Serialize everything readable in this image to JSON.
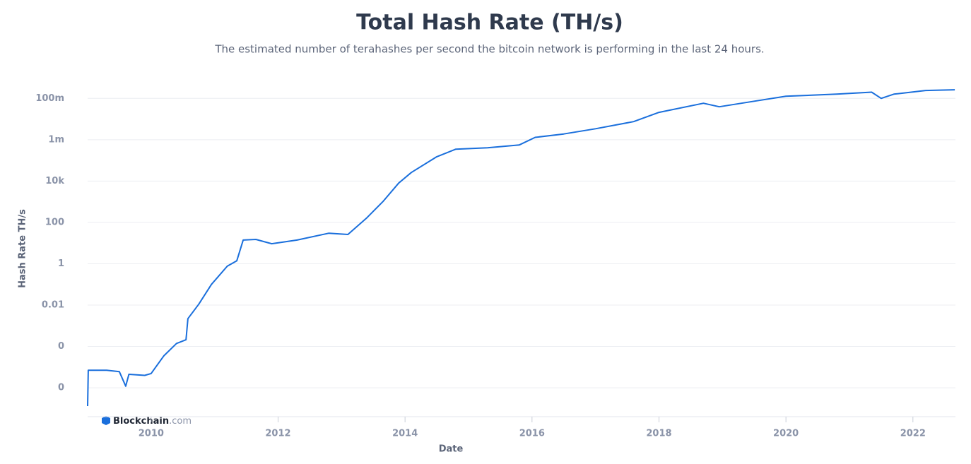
{
  "chart_data": {
    "type": "line",
    "title": "Total Hash Rate (TH/s)",
    "subtitle": "The estimated number of terahashes per second the bitcoin network is performing in the last 24 hours.",
    "xlabel": "Date",
    "ylabel": "Hash Rate TH/s",
    "brand": [
      "Blockchain",
      ".com"
    ],
    "log_y": true,
    "grid": true,
    "xlim": [
      2009,
      2022.67
    ],
    "ylim": [
      4e-08,
      1000000000
    ],
    "xticks": [
      2010,
      2012,
      2014,
      2016,
      2018,
      2020,
      2022
    ],
    "yticks": [
      {
        "value": 100000000,
        "label": "100m"
      },
      {
        "value": 1000000,
        "label": "1m"
      },
      {
        "value": 10000,
        "label": "10k"
      },
      100,
      1,
      0.01,
      {
        "value": 0.0001,
        "label": "0"
      },
      {
        "value": 1e-06,
        "label": "0"
      }
    ],
    "x": [
      2009.0,
      2009.01,
      2009.3,
      2009.5,
      2009.6,
      2009.65,
      2009.9,
      2010.0,
      2010.2,
      2010.4,
      2010.55,
      2010.58,
      2010.75,
      2010.95,
      2011.2,
      2011.35,
      2011.45,
      2011.65,
      2011.9,
      2012.3,
      2012.8,
      2013.1,
      2013.4,
      2013.65,
      2013.9,
      2014.1,
      2014.5,
      2014.8,
      2015.3,
      2015.8,
      2016.05,
      2016.5,
      2017.0,
      2017.6,
      2018.0,
      2018.7,
      2018.95,
      2019.5,
      2020.0,
      2020.8,
      2021.35,
      2021.5,
      2021.7,
      2022.2,
      2022.66
    ],
    "series": [
      {
        "name": "Hash Rate",
        "color": "#1a6fdc",
        "values": [
          1.3e-07,
          7e-06,
          7e-06,
          6e-06,
          1.2e-06,
          4.5e-06,
          4e-06,
          4.9e-06,
          3.5e-05,
          0.00014,
          0.00021,
          0.0022,
          0.011,
          0.1,
          0.76,
          1.4,
          14,
          15,
          9.3,
          14,
          30,
          26,
          170,
          1000,
          8000,
          26000,
          150000,
          350000,
          410000,
          560000,
          1300000,
          1900000,
          3400000,
          7500000,
          21000000,
          58000000,
          39000000,
          73000000,
          126000000,
          160000000,
          200000000,
          100000000,
          160000000,
          240000000,
          260000000
        ]
      }
    ]
  }
}
